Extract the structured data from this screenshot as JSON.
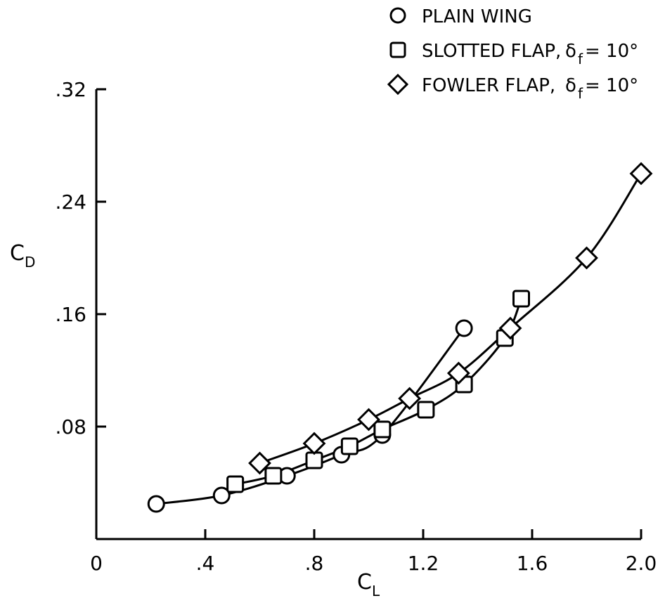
{
  "chart_data": {
    "type": "line",
    "title": "",
    "xlabel": "C",
    "xlabel_sub": "L",
    "ylabel": "C",
    "ylabel_sub": "D",
    "xlim": [
      0,
      2.0
    ],
    "ylim": [
      0,
      0.32
    ],
    "x_ticks": [
      {
        "value": 0,
        "label": "0"
      },
      {
        "value": 0.4,
        "label": ".4"
      },
      {
        "value": 0.8,
        "label": ".8"
      },
      {
        "value": 1.2,
        "label": "1.2"
      },
      {
        "value": 1.6,
        "label": "1.6"
      },
      {
        "value": 2.0,
        "label": "2.0"
      }
    ],
    "y_ticks": [
      {
        "value": 0.08,
        "label": ".08"
      },
      {
        "value": 0.16,
        "label": ".16"
      },
      {
        "value": 0.24,
        "label": ".24"
      },
      {
        "value": 0.32,
        "label": ".32"
      }
    ],
    "grid": false,
    "legend_position": "top-right",
    "series": [
      {
        "name": "PLAIN WING",
        "marker": "circle",
        "points": [
          [
            0.22,
            0.025
          ],
          [
            0.46,
            0.031
          ],
          [
            0.7,
            0.045
          ],
          [
            0.9,
            0.06
          ],
          [
            1.05,
            0.074
          ],
          [
            1.35,
            0.15
          ]
        ]
      },
      {
        "name": "SLOTTED FLAP,",
        "flap_symbol": "δ",
        "flap_sub": "f",
        "flap_value": " = 10°",
        "marker": "square",
        "points": [
          [
            0.51,
            0.039
          ],
          [
            0.65,
            0.045
          ],
          [
            0.8,
            0.056
          ],
          [
            0.93,
            0.066
          ],
          [
            1.05,
            0.078
          ],
          [
            1.21,
            0.092
          ],
          [
            1.35,
            0.11
          ],
          [
            1.5,
            0.143
          ],
          [
            1.56,
            0.171
          ]
        ]
      },
      {
        "name": "FOWLER FLAP,",
        "flap_symbol": "δ",
        "flap_sub": "f",
        "flap_value": " = 10°",
        "marker": "diamond",
        "points": [
          [
            0.6,
            0.054
          ],
          [
            0.8,
            0.068
          ],
          [
            1.0,
            0.085
          ],
          [
            1.15,
            0.1
          ],
          [
            1.33,
            0.118
          ],
          [
            1.52,
            0.15
          ],
          [
            1.8,
            0.2
          ],
          [
            2.0,
            0.26
          ]
        ]
      }
    ]
  }
}
